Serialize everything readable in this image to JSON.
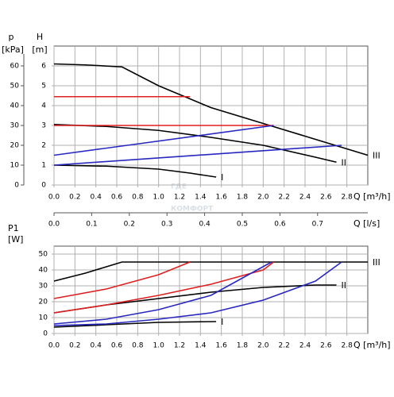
{
  "chart_data": [
    {
      "type": "line",
      "y_label": "H",
      "y_unit": "[m]",
      "y2_label": "p",
      "y2_unit": "[kPa]",
      "x_label": "Q [m³/h]",
      "xlim": [
        0,
        3.0
      ],
      "xticks": [
        {
          "value": 0,
          "label": "0.0"
        },
        0.2,
        0.4,
        0.6,
        0.8,
        {
          "value": 1,
          "label": "1.0"
        },
        1.2,
        1.4,
        1.6,
        1.8,
        {
          "value": 2,
          "label": "2.0"
        },
        2.2,
        2.4,
        2.6,
        2.8
      ],
      "ylim": [
        0,
        7
      ],
      "yticks": [
        0,
        1,
        2,
        3,
        4,
        5,
        6
      ],
      "y2lim": [
        0,
        70
      ],
      "y2ticks": [
        0,
        10,
        20,
        30,
        40,
        50,
        60
      ],
      "x2_label": "Q [l/s]",
      "x2lim": [
        0,
        0.8333
      ],
      "x2ticks": [
        {
          "value": 0,
          "label": "0.0"
        },
        0.1,
        0.2,
        0.3,
        0.4,
        0.5,
        0.6,
        0.7
      ],
      "grid": true,
      "watermark": [
        "ГДЕ",
        "КОМФОРТ"
      ],
      "series": [
        {
          "name": "III",
          "color": "#000000",
          "x": [
            0,
            0.3,
            0.65,
            1.0,
            1.5,
            2.0,
            2.5,
            3.0
          ],
          "values": [
            6.1,
            6.05,
            5.95,
            5.0,
            3.9,
            3.1,
            2.3,
            1.5
          ]
        },
        {
          "name": "II",
          "color": "#000000",
          "x": [
            0,
            0.5,
            1.0,
            1.5,
            2.0,
            2.5,
            2.7
          ],
          "values": [
            3.05,
            2.95,
            2.75,
            2.4,
            2.0,
            1.4,
            1.15
          ]
        },
        {
          "name": "I",
          "color": "#000000",
          "x": [
            0,
            0.5,
            1.0,
            1.3,
            1.55
          ],
          "values": [
            1.0,
            0.95,
            0.8,
            0.6,
            0.4
          ]
        },
        {
          "color": "#e02020",
          "x": [
            0,
            1.3
          ],
          "values": [
            4.45,
            4.45
          ]
        },
        {
          "color": "#e02020",
          "x": [
            0,
            2.1
          ],
          "values": [
            3.0,
            3.0
          ]
        },
        {
          "color": "#2828c0",
          "x": [
            0,
            2.1
          ],
          "values": [
            1.5,
            3.0
          ]
        },
        {
          "color": "#2828c0",
          "x": [
            0,
            2.75
          ],
          "values": [
            1.0,
            2.0
          ]
        }
      ]
    },
    {
      "type": "line",
      "y_label": "P1",
      "y_unit": "[W]",
      "x_label": "Q [m³/h]",
      "xlim": [
        0,
        3.0
      ],
      "xticks": [
        {
          "value": 0,
          "label": "0.0"
        },
        0.2,
        0.4,
        0.6,
        0.8,
        {
          "value": 1,
          "label": "1.0"
        },
        1.2,
        1.4,
        1.6,
        1.8,
        {
          "value": 2,
          "label": "2.0"
        },
        2.2,
        2.4,
        2.6,
        2.8
      ],
      "ylim": [
        0,
        55
      ],
      "yticks": [
        0,
        10,
        20,
        30,
        40,
        50
      ],
      "grid": true,
      "series": [
        {
          "name": "III",
          "color": "#000000",
          "x": [
            0,
            0.3,
            0.65,
            3.0
          ],
          "values": [
            33,
            38,
            45,
            45
          ]
        },
        {
          "name": "II",
          "color": "#000000",
          "x": [
            0,
            0.5,
            1.0,
            1.5,
            2.0,
            2.5,
            2.7
          ],
          "values": [
            13,
            18,
            22,
            26,
            29,
            30.5,
            30.5
          ]
        },
        {
          "name": "I",
          "color": "#000000",
          "x": [
            0,
            0.5,
            1.0,
            1.55
          ],
          "values": [
            4,
            5.5,
            7,
            7.5
          ]
        },
        {
          "color": "#e02020",
          "x": [
            0,
            0.5,
            1.0,
            1.3
          ],
          "values": [
            22,
            28,
            37,
            45
          ]
        },
        {
          "color": "#e02020",
          "x": [
            0,
            0.5,
            1.0,
            1.5,
            2.0,
            2.1
          ],
          "values": [
            13,
            18,
            24,
            31,
            40,
            45
          ]
        },
        {
          "color": "#2828c0",
          "x": [
            0,
            0.5,
            1.0,
            1.5,
            2.08
          ],
          "values": [
            6,
            9,
            15,
            24,
            45
          ]
        },
        {
          "color": "#2828c0",
          "x": [
            0,
            0.5,
            1.0,
            1.5,
            2.0,
            2.5,
            2.75
          ],
          "values": [
            5,
            6,
            9,
            13,
            21,
            33,
            45
          ]
        }
      ]
    }
  ]
}
